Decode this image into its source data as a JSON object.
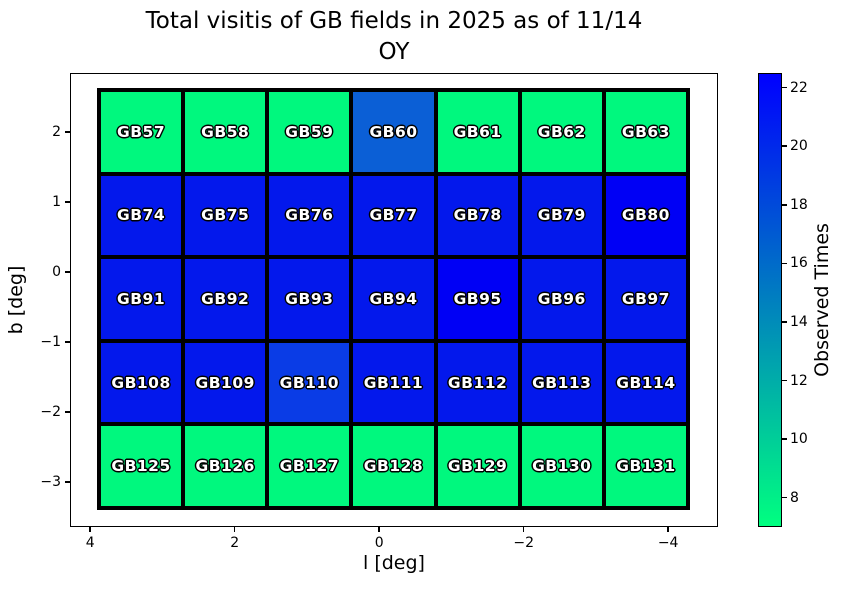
{
  "title": {
    "line1": "Total visitis of GB fields in 2025 as of 11/14",
    "line2": "OY"
  },
  "chart_data": {
    "type": "heatmap",
    "title": "Total visitis of GB fields in 2025 as of 11/14 OY",
    "xlabel": "l [deg]",
    "ylabel": "b [deg]",
    "colormap": "winter_r",
    "grid_on": false,
    "axes": {
      "x_range": [
        4.28,
        -4.69
      ],
      "y_range": [
        2.84,
        -3.64
      ],
      "x_ticks": [
        {
          "v": 4,
          "label": "4"
        },
        {
          "v": 2,
          "label": "2"
        },
        {
          "v": 0,
          "label": "0"
        },
        {
          "v": -2,
          "label": "−2"
        },
        {
          "v": -4,
          "label": "−4"
        }
      ],
      "y_ticks": [
        {
          "v": 2,
          "label": "2"
        },
        {
          "v": 1,
          "label": "1"
        },
        {
          "v": 0,
          "label": "0"
        },
        {
          "v": -1,
          "label": "−1"
        },
        {
          "v": -2,
          "label": "−2"
        },
        {
          "v": -3,
          "label": "−3"
        }
      ]
    },
    "colorbar": {
      "label": "Observed Times",
      "vmin": 7.0,
      "vmax": 22.5,
      "color_min": "#00FF80",
      "color_max": "#0000FF",
      "ticks": [
        {
          "v": 8,
          "label": "8"
        },
        {
          "v": 10,
          "label": "10"
        },
        {
          "v": 12,
          "label": "12"
        },
        {
          "v": 14,
          "label": "14"
        },
        {
          "v": 16,
          "label": "16"
        },
        {
          "v": 18,
          "label": "18"
        },
        {
          "v": 20,
          "label": "20"
        },
        {
          "v": 22,
          "label": "22"
        }
      ]
    },
    "grid": {
      "columns": 7,
      "rows": 5,
      "cells": [
        [
          {
            "label": "GB57",
            "value": 7,
            "color": "#00F87E"
          },
          {
            "label": "GB58",
            "value": 7,
            "color": "#00F87E"
          },
          {
            "label": "GB59",
            "value": 7,
            "color": "#00F87E"
          },
          {
            "label": "GB60",
            "value": 17,
            "color": "#0B5FD6"
          },
          {
            "label": "GB61",
            "value": 7,
            "color": "#00F87E"
          },
          {
            "label": "GB62",
            "value": 7,
            "color": "#00F87E"
          },
          {
            "label": "GB63",
            "value": 7,
            "color": "#00F87E"
          }
        ],
        [
          {
            "label": "GB74",
            "value": 21,
            "color": "#0318EC"
          },
          {
            "label": "GB75",
            "value": 21,
            "color": "#0318EC"
          },
          {
            "label": "GB76",
            "value": 21,
            "color": "#0318EC"
          },
          {
            "label": "GB77",
            "value": 21,
            "color": "#0318EC"
          },
          {
            "label": "GB78",
            "value": 21,
            "color": "#0318EC"
          },
          {
            "label": "GB79",
            "value": 21,
            "color": "#0318EC"
          },
          {
            "label": "GB80",
            "value": 22,
            "color": "#0000F5"
          }
        ],
        [
          {
            "label": "GB91",
            "value": 21,
            "color": "#0318EC"
          },
          {
            "label": "GB92",
            "value": 21,
            "color": "#0318EC"
          },
          {
            "label": "GB93",
            "value": 21,
            "color": "#0318EC"
          },
          {
            "label": "GB94",
            "value": 21,
            "color": "#0318EC"
          },
          {
            "label": "GB95",
            "value": 22,
            "color": "#0000F5"
          },
          {
            "label": "GB96",
            "value": 21,
            "color": "#0318EC"
          },
          {
            "label": "GB97",
            "value": 21,
            "color": "#0318EC"
          }
        ],
        [
          {
            "label": "GB108",
            "value": 21,
            "color": "#0318EC"
          },
          {
            "label": "GB109",
            "value": 21,
            "color": "#0318EC"
          },
          {
            "label": "GB110",
            "value": 19,
            "color": "#0A3CE6"
          },
          {
            "label": "GB111",
            "value": 21,
            "color": "#0318EC"
          },
          {
            "label": "GB112",
            "value": 21,
            "color": "#0318EC"
          },
          {
            "label": "GB113",
            "value": 21,
            "color": "#0318EC"
          },
          {
            "label": "GB114",
            "value": 21,
            "color": "#0318EC"
          }
        ],
        [
          {
            "label": "GB125",
            "value": 7,
            "color": "#00F87E"
          },
          {
            "label": "GB126",
            "value": 7,
            "color": "#00F87E"
          },
          {
            "label": "GB127",
            "value": 7,
            "color": "#00F87E"
          },
          {
            "label": "GB128",
            "value": 7,
            "color": "#00F87E"
          },
          {
            "label": "GB129",
            "value": 7,
            "color": "#00F87E"
          },
          {
            "label": "GB130",
            "value": 7,
            "color": "#00F87E"
          },
          {
            "label": "GB131",
            "value": 7,
            "color": "#00F87E"
          }
        ]
      ]
    }
  }
}
